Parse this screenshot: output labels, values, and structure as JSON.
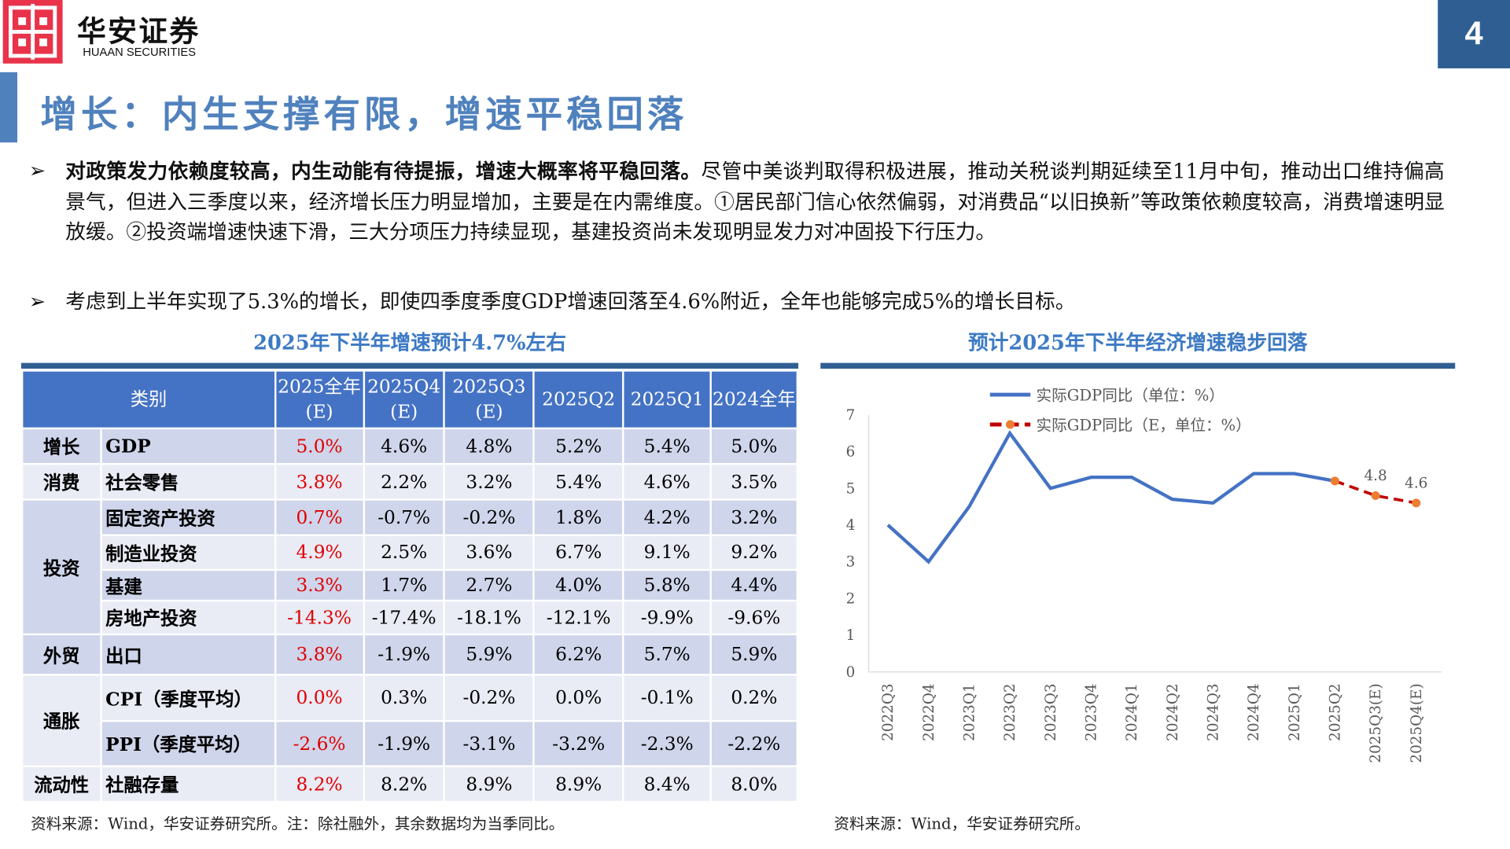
{
  "header": {
    "logo_cn": "华安证券",
    "logo_en": "HUAAN SECURITIES",
    "page_number": "4",
    "title": "增长：内生支撑有限，增速平稳回落"
  },
  "bullets": [
    {
      "bold": "对政策发力依赖度较高，内生动能有待提振，增速大概率将平稳回落。",
      "text": "尽管中美谈判取得积极进展，推动关税谈判期延续至11月中旬，推动出口维持偏高景气，但进入三季度以来，经济增长压力明显增加，主要是在内需维度。①居民部门信心依然偏弱，对消费品“以旧换新”等政策依赖度较高，消费增速明显放缓。②投资端增速快速下滑，三大分项压力持续显现，基建投资尚未发现明显发力对冲固投下行压力。"
    },
    {
      "bold": "",
      "text": "考虑到上半年实现了5.3%的增长，即使四季度季度GDP增速回落至4.6%附近，全年也能够完成5%的增长目标。"
    }
  ],
  "table": {
    "subtitle": "2025年下半年增速预计4.7%左右",
    "header_category": "类别",
    "columns": [
      [
        "2025全年",
        "(E)"
      ],
      [
        "2025Q4",
        "(E)"
      ],
      [
        "2025Q3",
        "(E)"
      ],
      [
        "2025Q2",
        ""
      ],
      [
        "2025Q1",
        ""
      ],
      [
        "2024全年",
        ""
      ]
    ],
    "groups": [
      {
        "name": "增长",
        "rows": [
          {
            "item": "GDP",
            "values": [
              "5.0%",
              "4.6%",
              "4.8%",
              "5.2%",
              "5.4%",
              "5.0%"
            ]
          }
        ]
      },
      {
        "name": "消费",
        "rows": [
          {
            "item": "社会零售",
            "values": [
              "3.8%",
              "2.2%",
              "3.2%",
              "5.4%",
              "4.6%",
              "3.5%"
            ]
          }
        ]
      },
      {
        "name": "投资",
        "rows": [
          {
            "item": "固定资产投资",
            "values": [
              "0.7%",
              "-0.7%",
              "-0.2%",
              "1.8%",
              "4.2%",
              "3.2%"
            ]
          },
          {
            "item": "制造业投资",
            "values": [
              "4.9%",
              "2.5%",
              "3.6%",
              "6.7%",
              "9.1%",
              "9.2%"
            ]
          },
          {
            "item": "基建",
            "values": [
              "3.3%",
              "1.7%",
              "2.7%",
              "4.0%",
              "5.8%",
              "4.4%"
            ]
          },
          {
            "item": "房地产投资",
            "values": [
              "-14.3%",
              "-17.4%",
              "-18.1%",
              "-12.1%",
              "-9.9%",
              "-9.6%"
            ]
          }
        ]
      },
      {
        "name": "外贸",
        "rows": [
          {
            "item": "出口",
            "values": [
              "3.8%",
              "-1.9%",
              "5.9%",
              "6.2%",
              "5.7%",
              "5.9%"
            ]
          }
        ]
      },
      {
        "name": "通胀",
        "rows": [
          {
            "item": "CPI（季度平均）",
            "values": [
              "0.0%",
              "0.3%",
              "-0.2%",
              "0.0%",
              "-0.1%",
              "0.2%"
            ]
          },
          {
            "item": "PPI（季度平均）",
            "values": [
              "-2.6%",
              "-1.9%",
              "-3.1%",
              "-3.2%",
              "-2.3%",
              "-2.2%"
            ]
          }
        ]
      },
      {
        "name": "流动性",
        "rows": [
          {
            "item": "社融存量",
            "values": [
              "8.2%",
              "8.2%",
              "8.9%",
              "8.9%",
              "8.4%",
              "8.0%"
            ]
          }
        ]
      }
    ],
    "highlight_color": "#e00000",
    "source": "资料来源：Wind，华安证券研究所。注：除社融外，其余数据均为当季同比。"
  },
  "chart_data": {
    "type": "line",
    "title": "预计2025年下半年经济增速稳步回落",
    "categories": [
      "2022Q3",
      "2022Q4",
      "2023Q1",
      "2023Q2",
      "2023Q3",
      "2023Q4",
      "2024Q1",
      "2024Q2",
      "2024Q3",
      "2024Q4",
      "2025Q1",
      "2025Q2",
      "2025Q3(E)",
      "2025Q4(E)"
    ],
    "ylim": [
      0,
      7
    ],
    "yticks": [
      0,
      1,
      2,
      3,
      4,
      5,
      6,
      7
    ],
    "legend_position": "top",
    "series": [
      {
        "name": "实际GDP同比（单位：%）",
        "color": "#4472c4",
        "style": "solid",
        "values": [
          4.0,
          3.0,
          4.5,
          6.5,
          5.0,
          5.3,
          5.3,
          4.7,
          4.6,
          5.4,
          5.4,
          5.2,
          null,
          null
        ]
      },
      {
        "name": "实际GDP同比（E，单位：%）",
        "color": "#c00000",
        "marker_color": "#ed7d31",
        "style": "dashed",
        "values": [
          null,
          null,
          null,
          null,
          null,
          null,
          null,
          null,
          null,
          null,
          null,
          5.2,
          4.8,
          4.6
        ],
        "data_labels": [
          null,
          null,
          null,
          null,
          null,
          null,
          null,
          null,
          null,
          null,
          null,
          null,
          "4.8",
          "4.6"
        ]
      }
    ],
    "source": "资料来源：Wind，华安证券研究所。"
  }
}
